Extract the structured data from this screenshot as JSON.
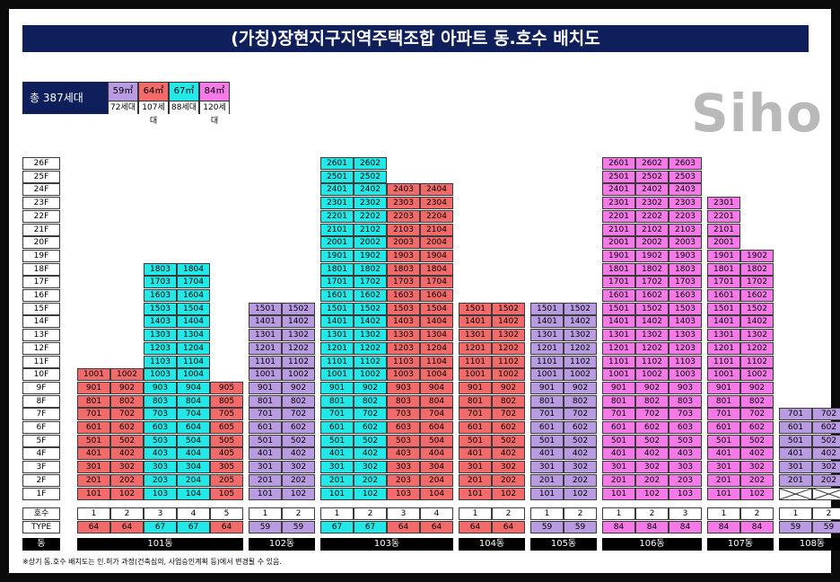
{
  "title": "(가칭)장현지구지역주택조합 아파트 동.호수 배치도",
  "logo": "Siho",
  "legend": {
    "total": "총 387세대",
    "types": [
      {
        "size": "59㎡",
        "count": "72세대",
        "color": "#b89be0"
      },
      {
        "size": "64㎡",
        "count": "107세대",
        "color": "#f26a6a"
      },
      {
        "size": "67㎡",
        "count": "88세대",
        "color": "#22e8e8"
      },
      {
        "size": "84㎡",
        "count": "120세대",
        "color": "#f57ae8"
      }
    ]
  },
  "colors": {
    "59": "#b89be0",
    "64": "#f26a6a",
    "67": "#22e8e8",
    "84": "#f57ae8"
  },
  "floor_labels": [
    "26F",
    "25F",
    "24F",
    "23F",
    "22F",
    "21F",
    "20F",
    "19F",
    "18F",
    "17F",
    "16F",
    "15F",
    "14F",
    "13F",
    "12F",
    "11F",
    "10F",
    "9F",
    "8F",
    "7F",
    "6F",
    "5F",
    "4F",
    "3F",
    "2F",
    "1F"
  ],
  "row_labels": {
    "line": "호수",
    "type": "TYPE",
    "dong": "동"
  },
  "chart_data": {
    "type": "table",
    "buildings": [
      {
        "name": "101동",
        "lines": [
          {
            "line": "1",
            "type": 64,
            "floors": 10,
            "empty_floors": []
          },
          {
            "line": "2",
            "type": 64,
            "floors": 10,
            "empty_floors": []
          },
          {
            "line": "3",
            "type": 67,
            "floors": 18,
            "empty_floors": []
          },
          {
            "line": "4",
            "type": 67,
            "floors": 18,
            "empty_floors": []
          },
          {
            "line": "5",
            "type": 64,
            "floors": 9,
            "empty_floors": []
          }
        ]
      },
      {
        "name": "102동",
        "lines": [
          {
            "line": "1",
            "type": 59,
            "floors": 15,
            "empty_floors": []
          },
          {
            "line": "2",
            "type": 59,
            "floors": 15,
            "empty_floors": []
          }
        ]
      },
      {
        "name": "103동",
        "lines": [
          {
            "line": "1",
            "type": 67,
            "floors": 26,
            "empty_floors": []
          },
          {
            "line": "2",
            "type": 67,
            "floors": 26,
            "empty_floors": []
          },
          {
            "line": "3",
            "type": 64,
            "floors": 24,
            "empty_floors": []
          },
          {
            "line": "4",
            "type": 64,
            "floors": 24,
            "empty_floors": []
          }
        ]
      },
      {
        "name": "104동",
        "lines": [
          {
            "line": "1",
            "type": 64,
            "floors": 15,
            "empty_floors": []
          },
          {
            "line": "2",
            "type": 64,
            "floors": 15,
            "empty_floors": []
          }
        ]
      },
      {
        "name": "105동",
        "lines": [
          {
            "line": "1",
            "type": 59,
            "floors": 15,
            "empty_floors": []
          },
          {
            "line": "2",
            "type": 59,
            "floors": 15,
            "empty_floors": []
          }
        ]
      },
      {
        "name": "106동",
        "lines": [
          {
            "line": "1",
            "type": 84,
            "floors": 26,
            "empty_floors": []
          },
          {
            "line": "2",
            "type": 84,
            "floors": 26,
            "empty_floors": []
          },
          {
            "line": "3",
            "type": 84,
            "floors": 26,
            "empty_floors": []
          }
        ]
      },
      {
        "name": "107동",
        "lines": [
          {
            "line": "1",
            "type": 84,
            "floors": 23,
            "empty_floors": []
          },
          {
            "line": "2",
            "type": 84,
            "floors": 19,
            "empty_floors": []
          }
        ]
      },
      {
        "name": "108동",
        "lines": [
          {
            "line": "1",
            "type": 59,
            "floors": 7,
            "empty_floors": [
              1
            ]
          },
          {
            "line": "2",
            "type": 59,
            "floors": 7,
            "empty_floors": [
              1
            ]
          }
        ]
      }
    ]
  },
  "footnote": "※상기 동.호수 배치도는 인.허가 과정(건축심의, 사업승인계획 등)에서 변경될 수 있음."
}
